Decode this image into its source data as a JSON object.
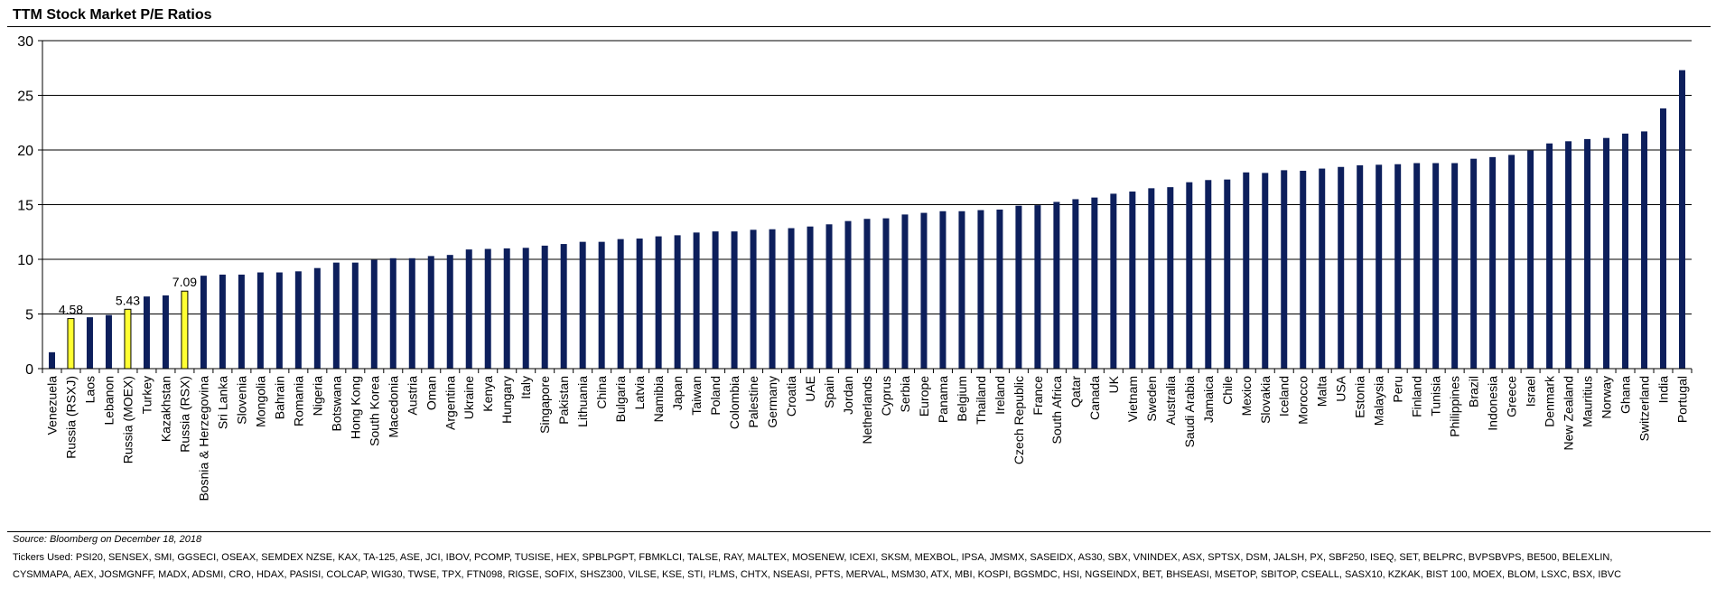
{
  "chart_data": {
    "type": "bar",
    "title": "TTM Stock Market P/E Ratios",
    "xlabel": "",
    "ylabel": "",
    "ylim": [
      0,
      30
    ],
    "yticks": [
      0,
      5,
      10,
      15,
      20,
      25,
      30
    ],
    "grid": true,
    "colors": {
      "default": "#0d1f5c",
      "highlight": "#ffff33",
      "highlight_stroke": "#000000"
    },
    "categories": [
      "Venezuela",
      "Russia (RSXJ)",
      "Laos",
      "Lebanon",
      "Russia (MOEX)",
      "Turkey",
      "Kazakhstan",
      "Russia (RSX)",
      "Bosnia & Herzegovina",
      "Sri Lanka",
      "Slovenia",
      "Mongolia",
      "Bahrain",
      "Romania",
      "Nigeria",
      "Botswana",
      "Hong Kong",
      "South Korea",
      "Macedonia",
      "Austria",
      "Oman",
      "Argentina",
      "Ukraine",
      "Kenya",
      "Hungary",
      "Italy",
      "Singapore",
      "Pakistan",
      "Lithuania",
      "China",
      "Bulgaria",
      "Latvia",
      "Namibia",
      "Japan",
      "Taiwan",
      "Poland",
      "Colombia",
      "Palestine",
      "Germany",
      "Croatia",
      "UAE",
      "Spain",
      "Jordan",
      "Netherlands",
      "Cyprus",
      "Serbia",
      "Europe",
      "Panama",
      "Belgium",
      "Thailand",
      "Ireland",
      "Czech Republic",
      "France",
      "South Africa",
      "Qatar",
      "Canada",
      "UK",
      "Vietnam",
      "Sweden",
      "Australia",
      "Saudi Arabia",
      "Jamaica",
      "Chile",
      "Mexico",
      "Slovakia",
      "Iceland",
      "Morocco",
      "Malta",
      "USA",
      "Estonia",
      "Malaysia",
      "Peru",
      "Finland",
      "Tunisia",
      "Philippines",
      "Brazil",
      "Indonesia",
      "Greece",
      "Israel",
      "Denmark",
      "New Zealand",
      "Mauritius",
      "Norway",
      "Ghana",
      "Switzerland",
      "India",
      "Portugal"
    ],
    "values": [
      1.5,
      4.58,
      4.7,
      4.9,
      5.43,
      6.6,
      6.7,
      7.09,
      8.5,
      8.6,
      8.6,
      8.8,
      8.8,
      8.9,
      9.2,
      9.7,
      9.7,
      9.95,
      10.1,
      10.1,
      10.3,
      10.4,
      10.9,
      10.95,
      11.0,
      11.05,
      11.25,
      11.4,
      11.6,
      11.6,
      11.85,
      11.9,
      12.1,
      12.2,
      12.45,
      12.55,
      12.55,
      12.7,
      12.75,
      12.85,
      13.0,
      13.2,
      13.5,
      13.7,
      13.75,
      14.1,
      14.25,
      14.4,
      14.4,
      14.5,
      14.55,
      14.9,
      14.95,
      15.25,
      15.5,
      15.65,
      16.0,
      16.2,
      16.5,
      16.6,
      17.05,
      17.25,
      17.3,
      17.95,
      17.9,
      18.15,
      18.1,
      18.3,
      18.45,
      18.6,
      18.65,
      18.7,
      18.8,
      18.8,
      18.8,
      19.2,
      19.35,
      19.55,
      19.95,
      20.6,
      20.8,
      21.0,
      21.1,
      21.5,
      21.7,
      23.8,
      27.3
    ],
    "highlighted": [
      "Russia (RSXJ)",
      "Russia (MOEX)",
      "Russia (RSX)"
    ],
    "data_labels": [
      {
        "category": "Russia (RSXJ)",
        "text": "4.58"
      },
      {
        "category": "Russia (MOEX)",
        "text": "5.43"
      },
      {
        "category": "Russia (RSX)",
        "text": "7.09"
      }
    ]
  },
  "source": "Source: Bloomberg on December 18, 2018",
  "tickers_line1": "Tickers Used: PSI20, SENSEX, SMI, GGSECI, OSEAX, SEMDEX NZSE, KAX, TA-125, ASE, JCI, IBOV, PCOMP, TUSISE, HEX, SPBLPGPT, FBMKLCI, TALSE, RAY, MALTEX, MOSENEW, ICEXI, SKSM, MEXBOL, IPSA, JMSMX, SASEIDX, AS30, SBX, VNINDEX, ASX, SPTSX, DSM, JALSH, PX, SBF250, ISEQ, SET, BELPRC, BVPSBVPS, BE500, BELEXLIN,",
  "tickers_line2": "CYSMMAPA, AEX, JOSMGNFF, MADX, ADSMI, CRO, HDAX, PASISI, COLCAP, WIG30, TWSE, TPX, FTN098, RIGSE, SOFIX, SHSZ300, VILSE, KSE, STI, I²LMS, CHTX, NSEASI, PFTS, MERVAL, MSM30, ATX, MBI, KOSPI, BGSMDC, HSI, NGSEINDX, BET, BHSEASI, MSETOP, SBITOP, CSEALL, SASX10, KZKAK, BIST 100, MOEX, BLOM, LSXC, BSX, IBVC"
}
